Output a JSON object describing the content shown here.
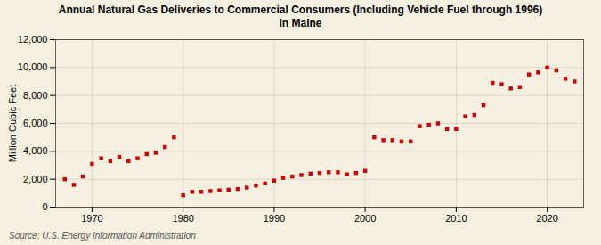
{
  "chart_data": {
    "type": "scatter",
    "title": "Annual Natural Gas Deliveries to Commercial Consumers (Including Vehicle Fuel through 1996)\nin Maine",
    "ylabel": "Million Cubic Feet",
    "caption": "Source: U.S. Energy Information Administration",
    "x": [
      1967,
      1968,
      1969,
      1970,
      1971,
      1972,
      1973,
      1974,
      1975,
      1976,
      1977,
      1978,
      1979,
      1980,
      1981,
      1982,
      1983,
      1984,
      1985,
      1986,
      1987,
      1988,
      1989,
      1990,
      1991,
      1992,
      1993,
      1994,
      1995,
      1996,
      1997,
      1998,
      1999,
      2000,
      2001,
      2002,
      2003,
      2004,
      2005,
      2006,
      2007,
      2008,
      2009,
      2010,
      2011,
      2012,
      2013,
      2014,
      2015,
      2016,
      2017,
      2018,
      2019,
      2020,
      2021,
      2022,
      2023
    ],
    "values": [
      2000,
      1600,
      2200,
      3100,
      3500,
      3300,
      3600,
      3300,
      3500,
      3800,
      3900,
      4300,
      5000,
      850,
      1100,
      1100,
      1150,
      1200,
      1250,
      1300,
      1400,
      1550,
      1700,
      1900,
      2100,
      2200,
      2300,
      2400,
      2450,
      2500,
      2500,
      2350,
      2450,
      2600,
      5000,
      4800,
      4800,
      4700,
      4700,
      5800,
      5900,
      6000,
      5600,
      5600,
      6500,
      6600,
      7300,
      8900,
      8800,
      8500,
      8600,
      9500,
      9650,
      10000,
      9800,
      9200,
      9000
    ],
    "color": "#cc0000",
    "marker": "square",
    "xlim": [
      1966,
      2024
    ],
    "xticks": [
      1970,
      1980,
      1990,
      2000,
      2010,
      2020
    ],
    "ylim": [
      0,
      12000
    ],
    "yticks": [
      0,
      {
        "value": 2000,
        "label": "2,000"
      },
      {
        "value": 4000,
        "label": "4,000"
      },
      {
        "value": 6000,
        "label": "6,000"
      },
      {
        "value": 8000,
        "label": "8,000"
      },
      {
        "value": 10000,
        "label": "10,000"
      },
      {
        "value": 12000,
        "label": "12,000"
      }
    ],
    "grid": true
  }
}
